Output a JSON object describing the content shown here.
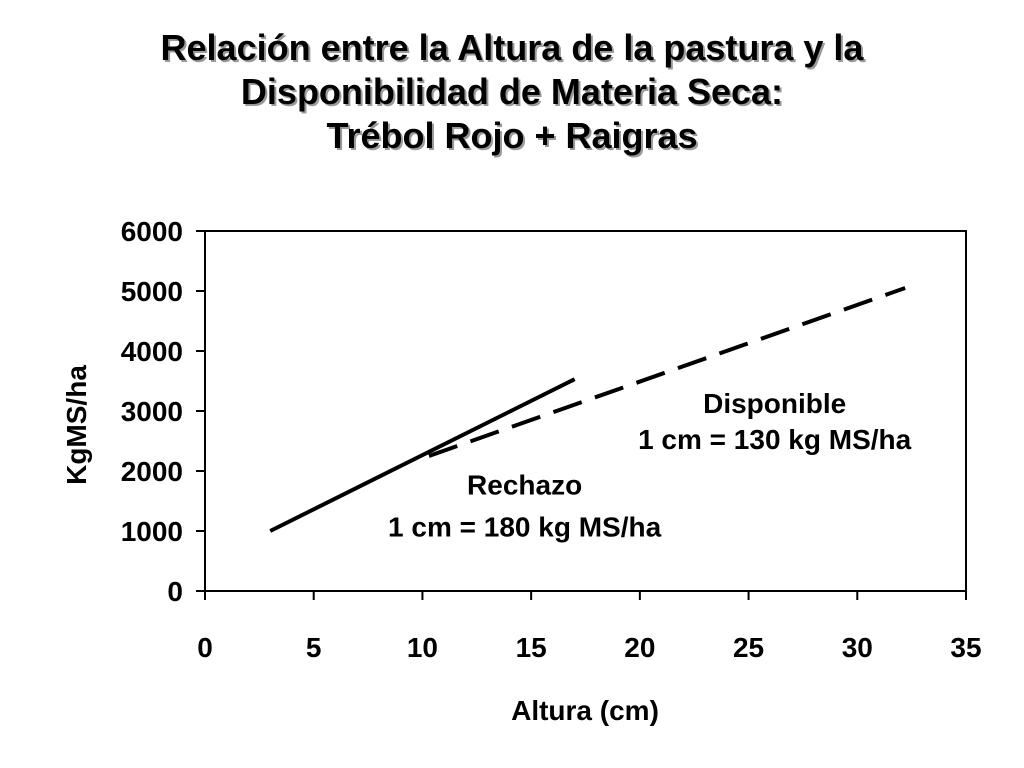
{
  "chart_data": {
    "type": "line",
    "title_lines": [
      "Relación entre la Altura de la pastura y la",
      "Disponibilidad de Materia Seca:",
      "Trébol Rojo + Raigras"
    ],
    "xlabel": "Altura (cm)",
    "ylabel": "KgMS/ha",
    "xlim": [
      0,
      35
    ],
    "ylim": [
      0,
      6000
    ],
    "x_ticks": [
      0,
      5,
      10,
      15,
      20,
      25,
      30,
      35
    ],
    "y_ticks": [
      0,
      1000,
      2000,
      3000,
      4000,
      5000,
      6000
    ],
    "grid": false,
    "legend": "none",
    "series": [
      {
        "style": "solid",
        "x": [
          3,
          17
        ],
        "y": [
          1000,
          3530
        ]
      },
      {
        "style": "dashed",
        "x": [
          10.3,
          32.2
        ],
        "y": [
          2250,
          5050
        ]
      }
    ],
    "annotations": [
      {
        "id": "disponible",
        "lines": [
          "Disponible",
          "1 cm = 130 kg MS/ha"
        ],
        "x": 26.2,
        "y": [
          2970,
          2370
        ]
      },
      {
        "id": "rechazo",
        "lines": [
          "Rechazo",
          "1 cm = 180 kg MS/ha"
        ],
        "x": 14.7,
        "y": [
          1610,
          910
        ]
      }
    ]
  }
}
